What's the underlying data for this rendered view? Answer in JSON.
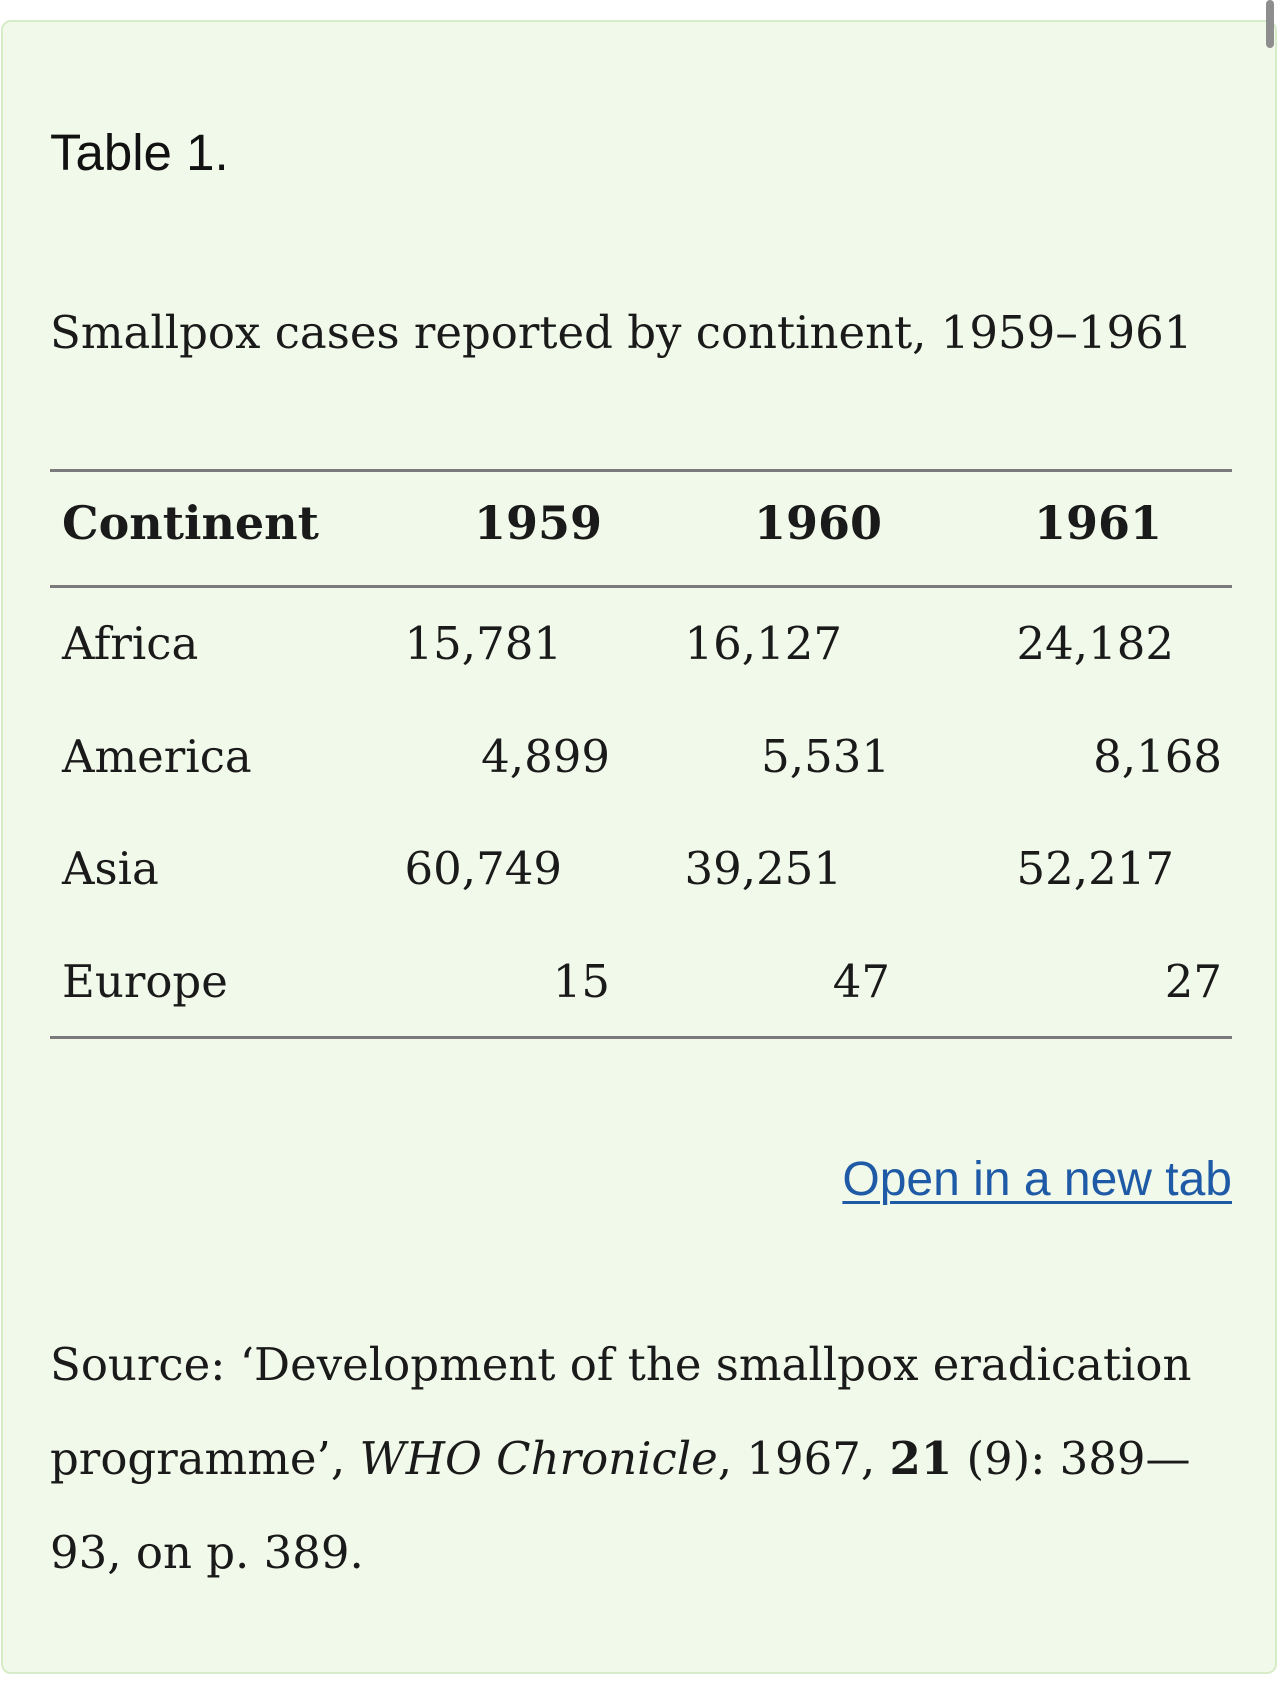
{
  "table": {
    "label": "Table 1.",
    "caption": "Smallpox cases reported by continent, 1959–1961",
    "columns": [
      "Continent",
      "1959",
      "1960",
      "1961"
    ],
    "rows": [
      [
        "Africa",
        "15,781",
        "16,127",
        "24,182"
      ],
      [
        "America",
        "4,899",
        "5,531",
        "8,168"
      ],
      [
        "Asia",
        "60,749",
        "39,251",
        "52,217"
      ],
      [
        "Europe",
        "15",
        "47",
        "27"
      ]
    ]
  },
  "link": {
    "open_new_tab": "Open in a new tab"
  },
  "source": {
    "prefix": "Source: ‘Development of the smallpox eradication programme’, ",
    "journal": "WHO Chronicle",
    "year_part": ", 1967, ",
    "volume": "21",
    "rest": " (9): 389—93, on p. 389."
  }
}
